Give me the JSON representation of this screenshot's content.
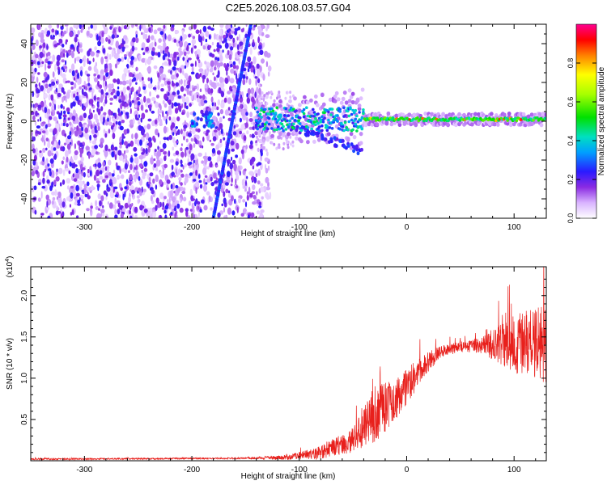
{
  "title": "C2E5.2026.108.03.57.G04",
  "chart_data": [
    {
      "type": "heatmap",
      "xlabel": "Height of straight line (km)",
      "ylabel": "Frequency (Hz)",
      "xlim": [
        -350,
        130
      ],
      "ylim": [
        -50,
        50
      ],
      "xticks": [
        -300,
        -200,
        -100,
        0,
        100
      ],
      "yticks": [
        -40,
        -20,
        0,
        20,
        40
      ],
      "colorbar": {
        "label": "Normalized spectral amplitude",
        "range": [
          0,
          1
        ],
        "ticks": [
          "0.0",
          "0.2",
          "0.4",
          "0.6",
          "0.8"
        ],
        "stops": [
          {
            "v": 0.0,
            "c": "#ffffff"
          },
          {
            "v": 0.08,
            "c": "#d9b3ff"
          },
          {
            "v": 0.16,
            "c": "#8a2be2"
          },
          {
            "v": 0.24,
            "c": "#2a1aff"
          },
          {
            "v": 0.34,
            "c": "#00a0ff"
          },
          {
            "v": 0.42,
            "c": "#00e0c0"
          },
          {
            "v": 0.52,
            "c": "#00e000"
          },
          {
            "v": 0.64,
            "c": "#a8ff00"
          },
          {
            "v": 0.74,
            "c": "#ffff00"
          },
          {
            "v": 0.84,
            "c": "#ff8000"
          },
          {
            "v": 0.92,
            "c": "#ff0000"
          },
          {
            "v": 1.0,
            "c": "#ff0090"
          }
        ]
      },
      "features": {
        "noise_region_x": [
          -350,
          -135
        ],
        "diagonal_line": {
          "x_start": -180,
          "y_start": -50,
          "x_end": -145,
          "y_end": 50
        },
        "carrier_line_x": [
          -140,
          130
        ],
        "carrier_line_y": 1
      }
    },
    {
      "type": "line",
      "xlabel": "Height of straight line (km)",
      "ylabel": "SNR (10 * v/v)",
      "exponent_label": "(x10",
      "exponent_power": "4",
      "exponent_close": ")",
      "xlim": [
        -350,
        130
      ],
      "ylim": [
        0,
        2.35
      ],
      "xticks": [
        -300,
        -200,
        -100,
        0,
        100
      ],
      "yticks": [
        "0.5",
        "1.0",
        "1.5",
        "2.0"
      ],
      "series": [
        {
          "name": "SNR",
          "color": "#e8201c",
          "envelope": [
            {
              "x": -350,
              "y": 0.02,
              "amp": 0.01
            },
            {
              "x": -150,
              "y": 0.03,
              "amp": 0.01
            },
            {
              "x": -110,
              "y": 0.04,
              "amp": 0.03
            },
            {
              "x": -80,
              "y": 0.1,
              "amp": 0.08
            },
            {
              "x": -50,
              "y": 0.25,
              "amp": 0.15
            },
            {
              "x": -30,
              "y": 0.55,
              "amp": 0.35
            },
            {
              "x": -10,
              "y": 0.75,
              "amp": 0.25
            },
            {
              "x": 10,
              "y": 1.05,
              "amp": 0.18
            },
            {
              "x": 30,
              "y": 1.32,
              "amp": 0.08
            },
            {
              "x": 50,
              "y": 1.38,
              "amp": 0.06
            },
            {
              "x": 70,
              "y": 1.4,
              "amp": 0.1
            },
            {
              "x": 100,
              "y": 1.42,
              "amp": 0.35
            },
            {
              "x": 130,
              "y": 1.4,
              "amp": 0.5
            }
          ]
        }
      ]
    }
  ]
}
